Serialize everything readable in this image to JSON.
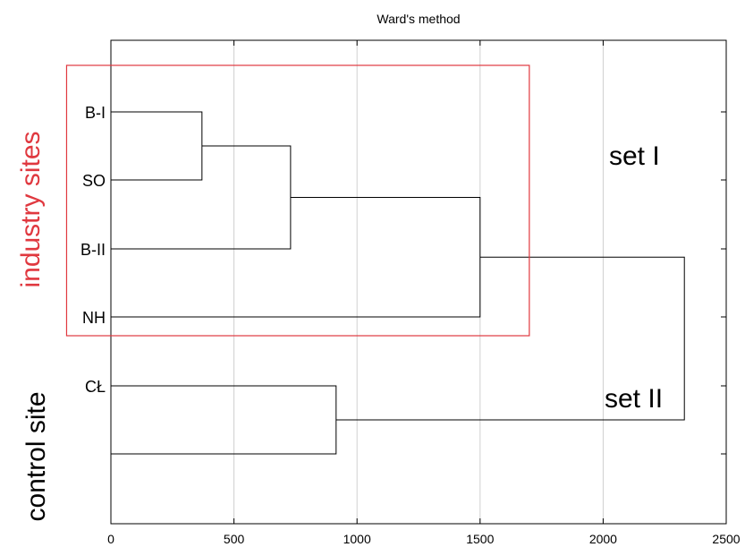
{
  "chart_data": {
    "type": "dendrogram",
    "title": "Ward's method",
    "xlim": [
      0,
      2500
    ],
    "x_ticks": [
      0,
      500,
      1000,
      1500,
      2000,
      2500
    ],
    "x_tick_labels": [
      "0",
      "500",
      "1000",
      "1500",
      "2000",
      "2500"
    ],
    "grid_x": true,
    "leaves": [
      "B-I",
      "SO",
      "B-II",
      "NH",
      "CŁ",
      ""
    ],
    "merges": [
      {
        "id": "m1",
        "left": "leaf:0",
        "right": "leaf:1",
        "height": 370
      },
      {
        "id": "m2",
        "left": "m1",
        "right": "leaf:2",
        "height": 730
      },
      {
        "id": "m3",
        "left": "m2",
        "right": "leaf:3",
        "height": 1500
      },
      {
        "id": "m4",
        "left": "leaf:4",
        "right": "leaf:5",
        "height": 915
      },
      {
        "id": "m5",
        "left": "m3",
        "right": "m4",
        "height": 2330
      }
    ],
    "highlight_box": {
      "color": "#e0383f",
      "covers_leaves": [
        0,
        1,
        2,
        3
      ],
      "x_extent": [
        -180,
        1700
      ]
    },
    "group_labels": [
      {
        "text": "industry sites",
        "color": "#e0383f"
      },
      {
        "text": "control site",
        "color": "#000000"
      }
    ],
    "set_labels": [
      "set I",
      "set II"
    ]
  }
}
